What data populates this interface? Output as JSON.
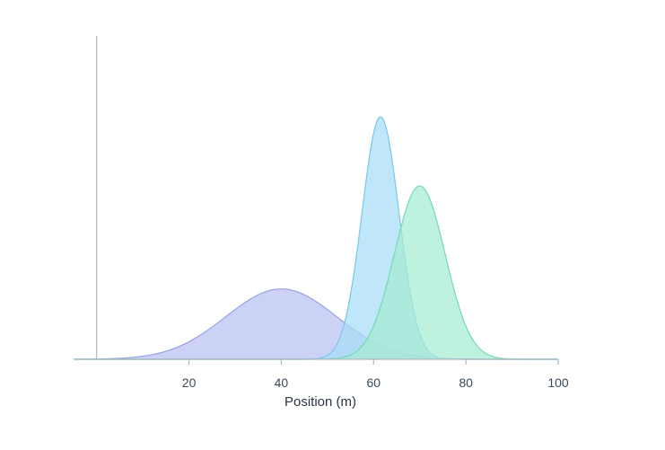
{
  "chart_data": {
    "type": "area",
    "title": "",
    "xlabel": "Position (m)",
    "ylabel": "",
    "xlim": [
      -5,
      100
    ],
    "ylim": [
      0,
      1.0
    ],
    "x_ticks": [
      20,
      40,
      60,
      80,
      100
    ],
    "grid": false,
    "legend": "none",
    "series": [
      {
        "mean": 40,
        "sd": 12,
        "peak": 0.29,
        "fill": "#b8c0f2",
        "stroke": "#98a2e4"
      },
      {
        "mean": 61.5,
        "sd": 4,
        "peak": 1.0,
        "fill": "#a6dcf6",
        "stroke": "#7cc6ee"
      },
      {
        "mean": 70,
        "sd": 5.5,
        "peak": 0.715,
        "fill": "#a6ecd2",
        "stroke": "#72dbb2"
      }
    ]
  }
}
